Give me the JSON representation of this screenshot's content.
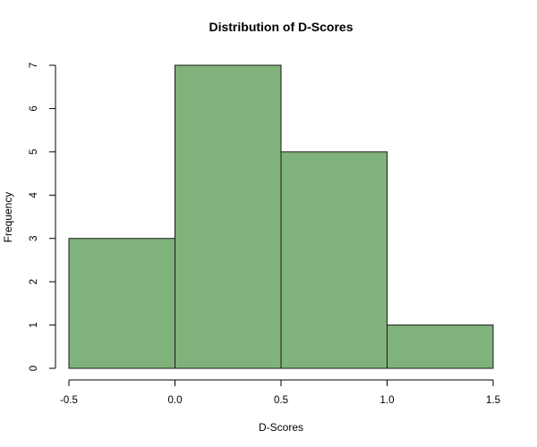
{
  "chart_data": {
    "type": "histogram",
    "title": "Distribution of D-Scores",
    "xlabel": "D-Scores",
    "ylabel": "Frequency",
    "bins": [
      {
        "start": -0.5,
        "end": 0.0,
        "count": 3
      },
      {
        "start": 0.0,
        "end": 0.5,
        "count": 7
      },
      {
        "start": 0.5,
        "end": 1.0,
        "count": 5
      },
      {
        "start": 1.0,
        "end": 1.5,
        "count": 1
      }
    ],
    "xlim": [
      -0.5,
      1.5
    ],
    "ylim": [
      0,
      7
    ],
    "xticks": [
      -0.5,
      0.0,
      0.5,
      1.0,
      1.5
    ],
    "xtick_labels": [
      "-0.5",
      "0.0",
      "0.5",
      "1.0",
      "1.5"
    ],
    "yticks": [
      0,
      1,
      2,
      3,
      4,
      5,
      6,
      7
    ],
    "ytick_labels": [
      "0",
      "1",
      "2",
      "3",
      "4",
      "5",
      "6",
      "7"
    ],
    "bar_color": "#80b27b",
    "bar_edge_color": "#1a1a1a",
    "grid": false,
    "legend": "none"
  }
}
